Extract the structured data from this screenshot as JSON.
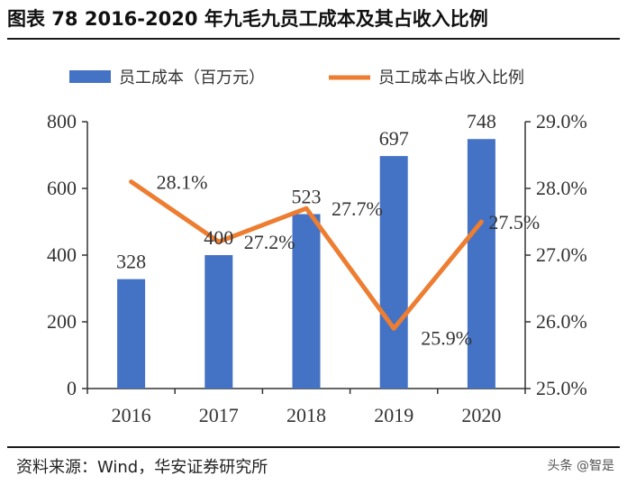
{
  "title": "图表 78 2016-2020 年九毛九员工成本及其占收入比例",
  "source": "资料来源：Wind，华安证券研究所",
  "watermark": "头条 @智是",
  "colors": {
    "bar": "#4472C4",
    "line": "#ED7D31"
  },
  "chart_data": {
    "type": "bar+line",
    "categories": [
      "2016",
      "2017",
      "2018",
      "2019",
      "2020"
    ],
    "series": [
      {
        "name": "员工成本（百万元）",
        "type": "bar",
        "axis": "left",
        "values": [
          328,
          400,
          523,
          697,
          748
        ],
        "labels": [
          "328",
          "400",
          "523",
          "697",
          "748"
        ]
      },
      {
        "name": "员工成本占收入比例",
        "type": "line",
        "axis": "right",
        "values": [
          28.1,
          27.2,
          27.7,
          25.9,
          27.5
        ],
        "labels": [
          "28.1%",
          "27.2%",
          "27.7%",
          "25.9%",
          "27.5%"
        ]
      }
    ],
    "y_left": {
      "min": 0,
      "max": 800,
      "ticks": [
        "0",
        "200",
        "400",
        "600",
        "800"
      ]
    },
    "y_right": {
      "min": 25.0,
      "max": 29.0,
      "ticks": [
        "25.0%",
        "26.0%",
        "27.0%",
        "28.0%",
        "29.0%"
      ]
    },
    "legend": "top",
    "grid": false
  }
}
